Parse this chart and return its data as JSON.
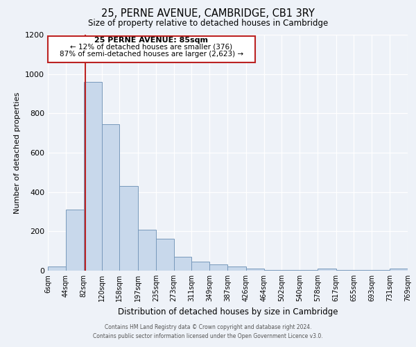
{
  "title": "25, PERNE AVENUE, CAMBRIDGE, CB1 3RY",
  "subtitle": "Size of property relative to detached houses in Cambridge",
  "xlabel": "Distribution of detached houses by size in Cambridge",
  "ylabel": "Number of detached properties",
  "bar_color": "#c8d8eb",
  "bar_edge_color": "#7799bb",
  "bg_color": "#eef2f8",
  "grid_color": "#ffffff",
  "property_line_x": 85,
  "property_line_color": "#bb2222",
  "annotation_box_color": "#ffffff",
  "annotation_box_edge": "#bb2222",
  "annotation_line1": "25 PERNE AVENUE: 85sqm",
  "annotation_line2": "← 12% of detached houses are smaller (376)",
  "annotation_line3": "87% of semi-detached houses are larger (2,623) →",
  "bin_edges": [
    6,
    44,
    82,
    120,
    158,
    197,
    235,
    273,
    311,
    349,
    387,
    426,
    464,
    502,
    540,
    578,
    617,
    655,
    693,
    731,
    769
  ],
  "bin_counts": [
    20,
    310,
    960,
    745,
    430,
    210,
    163,
    70,
    47,
    33,
    20,
    12,
    5,
    3,
    3,
    10,
    3,
    3,
    3,
    10
  ],
  "ylim": [
    0,
    1200
  ],
  "yticks": [
    0,
    200,
    400,
    600,
    800,
    1000,
    1200
  ],
  "tick_labels": [
    "6sqm",
    "44sqm",
    "82sqm",
    "120sqm",
    "158sqm",
    "197sqm",
    "235sqm",
    "273sqm",
    "311sqm",
    "349sqm",
    "387sqm",
    "426sqm",
    "464sqm",
    "502sqm",
    "540sqm",
    "578sqm",
    "617sqm",
    "655sqm",
    "693sqm",
    "731sqm",
    "769sqm"
  ],
  "footer_line1": "Contains HM Land Registry data © Crown copyright and database right 2024.",
  "footer_line2": "Contains public sector information licensed under the Open Government Licence v3.0."
}
